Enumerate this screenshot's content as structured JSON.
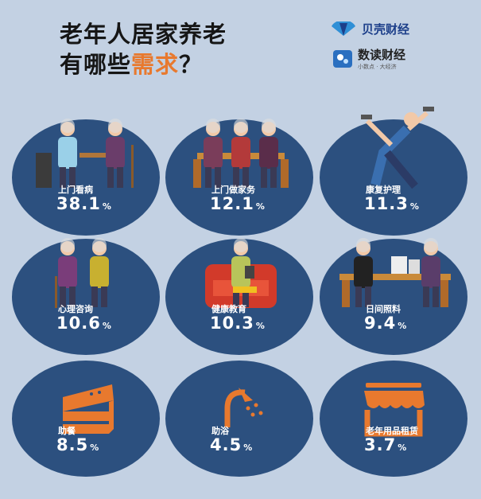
{
  "header": {
    "title_line1": "老年人居家养老",
    "title_line2_prefix": "有哪些",
    "title_line2_highlight": "需求",
    "title_line2_suffix": "？"
  },
  "logos": [
    {
      "name": "贝壳财经"
    },
    {
      "name": "数读财经",
      "tagline": "小数点 · 大经济"
    }
  ],
  "colors": {
    "background": "#c3d1e3",
    "ellipse": "#2c507f",
    "accent": "#e8792e"
  },
  "chart_data": {
    "type": "table",
    "unit": "%",
    "items": [
      {
        "label": "上门看病",
        "value": 38.1,
        "icon": "doctor-visit-illustration"
      },
      {
        "label": "上门做家务",
        "value": 12.1,
        "icon": "housework-illustration"
      },
      {
        "label": "康复护理",
        "value": 11.3,
        "icon": "rehab-exercise-illustration"
      },
      {
        "label": "心理咨询",
        "value": 10.6,
        "icon": "counseling-illustration"
      },
      {
        "label": "健康教育",
        "value": 10.3,
        "icon": "health-education-illustration"
      },
      {
        "label": "日间照料",
        "value": 9.4,
        "icon": "day-care-illustration"
      },
      {
        "label": "助餐",
        "value": 8.5,
        "icon": "cake-icon"
      },
      {
        "label": "助浴",
        "value": 4.5,
        "icon": "shower-icon"
      },
      {
        "label": "老年用品租赁",
        "value": 3.7,
        "icon": "store-icon"
      }
    ]
  }
}
